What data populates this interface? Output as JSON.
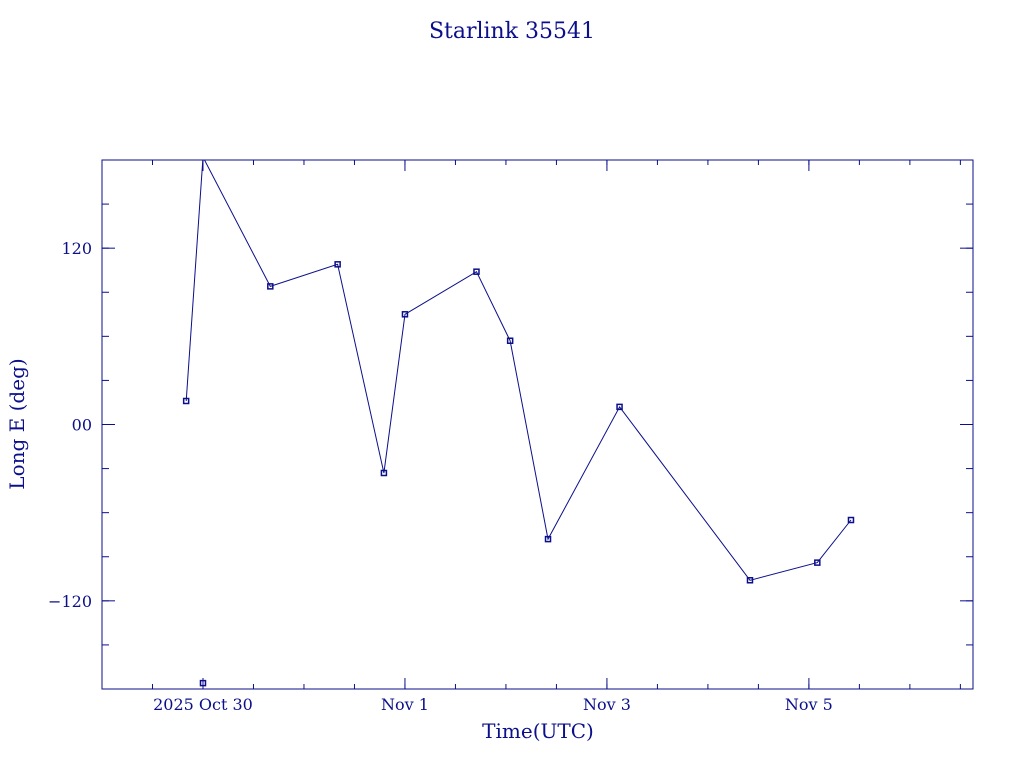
{
  "chart_data": {
    "type": "line",
    "title": "Starlink 35541",
    "xlabel": "Time(UTC)",
    "ylabel": "Long E (deg)",
    "color": "#0b0f8a",
    "x_axis": {
      "type": "time",
      "range": [
        "2025-10-29T00:00:00Z",
        "2025-11-06T15:00:00Z"
      ],
      "ticks": [
        {
          "label": "2025 Oct 30",
          "value": "2025-10-30T00:00:00Z"
        },
        {
          "label": "Nov  1",
          "value": "2025-11-01T00:00:00Z"
        },
        {
          "label": "Nov  3",
          "value": "2025-11-03T00:00:00Z"
        },
        {
          "label": "Nov  5",
          "value": "2025-11-05T00:00:00Z"
        }
      ]
    },
    "y_axis": {
      "range": [
        -180,
        180
      ],
      "ticks": [
        {
          "label": "120",
          "value": 120
        },
        {
          "label": "00",
          "value": 0
        },
        {
          "label": "−120",
          "value": -120
        }
      ]
    },
    "segments": [
      [
        {
          "x": "2025-10-29T20:00:00Z",
          "y": 16
        },
        {
          "x": "2025-10-30T00:00:00Z",
          "y": 182
        }
      ],
      [
        {
          "x": "2025-10-30T00:00:00Z",
          "y": -176
        }
      ],
      [
        {
          "x": "2025-10-30T00:00:00Z",
          "y": 182
        },
        {
          "x": "2025-10-30T16:00:00Z",
          "y": 94
        },
        {
          "x": "2025-10-31T08:00:00Z",
          "y": 109
        },
        {
          "x": "2025-10-31T19:00:00Z",
          "y": -33
        },
        {
          "x": "2025-11-01T00:00:00Z",
          "y": 75
        },
        {
          "x": "2025-11-01T17:00:00Z",
          "y": 104
        },
        {
          "x": "2025-11-02T01:00:00Z",
          "y": 57
        },
        {
          "x": "2025-11-02T10:00:00Z",
          "y": -78
        },
        {
          "x": "2025-11-03T03:00:00Z",
          "y": 12
        },
        {
          "x": "2025-11-04T10:00:00Z",
          "y": -106
        },
        {
          "x": "2025-11-05T02:00:00Z",
          "y": -94
        },
        {
          "x": "2025-11-05T10:00:00Z",
          "y": -65
        }
      ]
    ]
  }
}
